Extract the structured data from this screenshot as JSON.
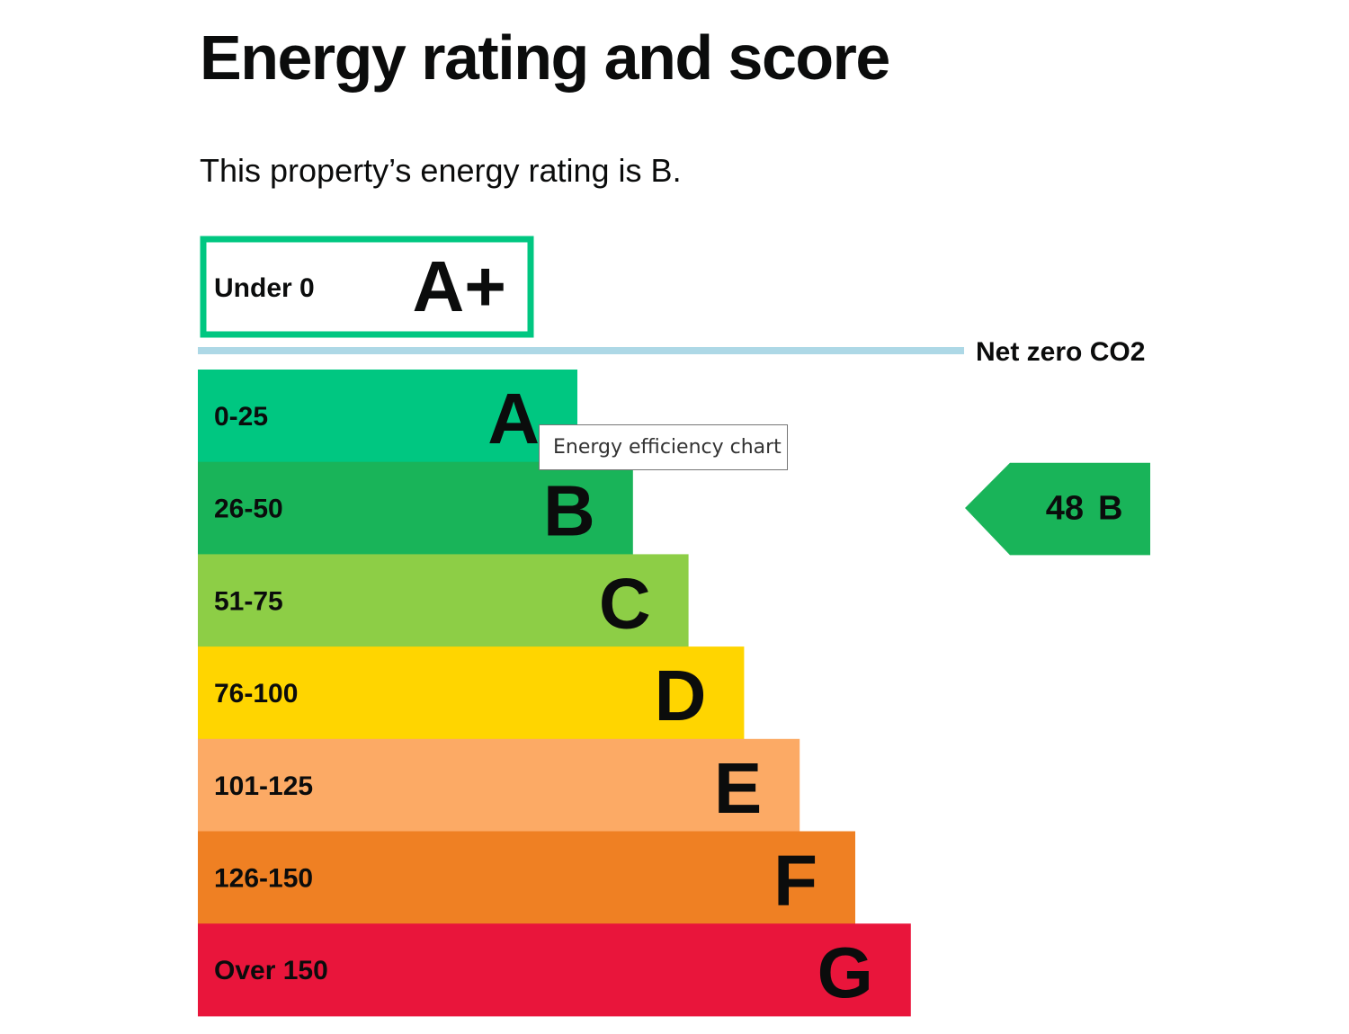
{
  "page": {
    "title": "Energy rating and score",
    "intro": "This property’s energy rating is B."
  },
  "tooltip": {
    "text": "Energy efficiency chart"
  },
  "chart_data": {
    "type": "bar",
    "title": "",
    "net_zero_label": "Net zero CO2",
    "top_band": {
      "range": "Under 0",
      "letter": "A+",
      "color": "#00c781"
    },
    "bands": [
      {
        "range": "0-25",
        "letter": "A",
        "color": "#00c781"
      },
      {
        "range": "26-50",
        "letter": "B",
        "color": "#19b459"
      },
      {
        "range": "51-75",
        "letter": "C",
        "color": "#8dce46"
      },
      {
        "range": "76-100",
        "letter": "D",
        "color": "#ffd500"
      },
      {
        "range": "101-125",
        "letter": "E",
        "color": "#fcaa65"
      },
      {
        "range": "126-150",
        "letter": "F",
        "color": "#ef8023"
      },
      {
        "range": "Over 150",
        "letter": "G",
        "color": "#e9153b"
      }
    ],
    "current": {
      "score": 48,
      "letter": "B",
      "color": "#19b459"
    },
    "net_zero_line_color": "#add8e6"
  }
}
